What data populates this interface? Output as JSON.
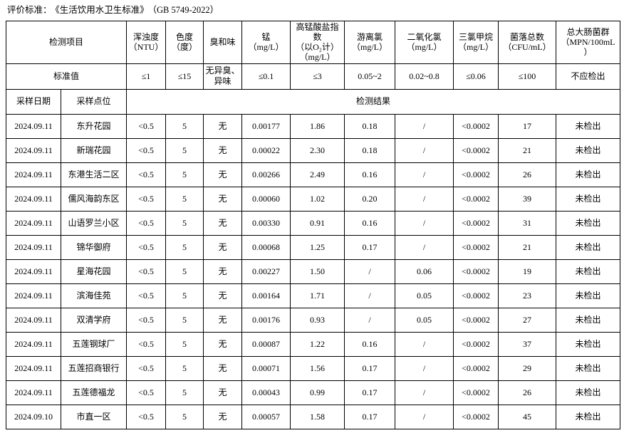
{
  "page": {
    "title_label": "评价标准：",
    "title_standard": "《生活饮用水卫生标准》",
    "title_code": "（GB 5749-2022）"
  },
  "table": {
    "corner_label": "检测项目",
    "standard_label": "标准值",
    "date_label": "采样日期",
    "location_label": "采样点位",
    "result_label": "检测结果",
    "columns": [
      {
        "id": "turbidity",
        "lines": [
          "浑浊度",
          "（NTU）"
        ]
      },
      {
        "id": "color",
        "lines": [
          "色度",
          "（度）"
        ]
      },
      {
        "id": "odor-taste",
        "lines": [
          "臭和味"
        ]
      },
      {
        "id": "manganese",
        "lines": [
          "锰",
          "（mg/L）"
        ]
      },
      {
        "id": "permanganate",
        "lines": [
          "高锰酸盐指数",
          "（以O₂计）",
          "（mg/L）"
        ]
      },
      {
        "id": "free-chlorine",
        "lines": [
          "游离氯",
          "（mg/L）"
        ]
      },
      {
        "id": "chlorine-dioxide",
        "lines": [
          "二氧化氯",
          "（mg/L）"
        ]
      },
      {
        "id": "trichloromethane",
        "lines": [
          "三氯甲烷",
          "（mg/L）"
        ]
      },
      {
        "id": "bacteria-count",
        "lines": [
          "菌落总数",
          "（CFU/mL）"
        ]
      },
      {
        "id": "total-coliform",
        "lines": [
          "总大肠菌群",
          "（MPN/100mL",
          "）"
        ]
      }
    ],
    "standards": [
      "≤1",
      "≤15",
      "无异臭、异味",
      "≤0.1",
      "≤3",
      "0.05~2",
      "0.02~0.8",
      "≤0.06",
      "≤100",
      "不应检出"
    ],
    "rows": [
      {
        "date": "2024.09.11",
        "location": "东升花园",
        "values": [
          "<0.5",
          "5",
          "无",
          "0.00177",
          "1.86",
          "0.18",
          "/",
          "<0.0002",
          "17",
          "未检出"
        ]
      },
      {
        "date": "2024.09.11",
        "location": "新瑞花园",
        "values": [
          "<0.5",
          "5",
          "无",
          "0.00022",
          "2.30",
          "0.18",
          "/",
          "<0.0002",
          "21",
          "未检出"
        ]
      },
      {
        "date": "2024.09.11",
        "location": "东港生活二区",
        "values": [
          "<0.5",
          "5",
          "无",
          "0.00266",
          "2.49",
          "0.16",
          "/",
          "<0.0002",
          "26",
          "未检出"
        ]
      },
      {
        "date": "2024.09.11",
        "location": "儒风海韵东区",
        "values": [
          "<0.5",
          "5",
          "无",
          "0.00060",
          "1.02",
          "0.20",
          "/",
          "<0.0002",
          "39",
          "未检出"
        ]
      },
      {
        "date": "2024.09.11",
        "location": "山语罗兰小区",
        "values": [
          "<0.5",
          "5",
          "无",
          "0.00330",
          "0.91",
          "0.16",
          "/",
          "<0.0002",
          "31",
          "未检出"
        ]
      },
      {
        "date": "2024.09.11",
        "location": "锦华御府",
        "values": [
          "<0.5",
          "5",
          "无",
          "0.00068",
          "1.25",
          "0.17",
          "/",
          "<0.0002",
          "21",
          "未检出"
        ]
      },
      {
        "date": "2024.09.11",
        "location": "星海花园",
        "values": [
          "<0.5",
          "5",
          "无",
          "0.00227",
          "1.50",
          "/",
          "0.06",
          "<0.0002",
          "19",
          "未检出"
        ]
      },
      {
        "date": "2024.09.11",
        "location": "滨海佳苑",
        "values": [
          "<0.5",
          "5",
          "无",
          "0.00164",
          "1.71",
          "/",
          "0.05",
          "<0.0002",
          "23",
          "未检出"
        ]
      },
      {
        "date": "2024.09.11",
        "location": "双清学府",
        "values": [
          "<0.5",
          "5",
          "无",
          "0.00176",
          "0.93",
          "/",
          "0.05",
          "<0.0002",
          "27",
          "未检出"
        ]
      },
      {
        "date": "2024.09.11",
        "location": "五莲钢球厂",
        "values": [
          "<0.5",
          "5",
          "无",
          "0.00087",
          "1.22",
          "0.16",
          "/",
          "<0.0002",
          "37",
          "未检出"
        ]
      },
      {
        "date": "2024.09.11",
        "location": "五莲招商银行",
        "values": [
          "<0.5",
          "5",
          "无",
          "0.00071",
          "1.56",
          "0.17",
          "/",
          "<0.0002",
          "29",
          "未检出"
        ]
      },
      {
        "date": "2024.09.11",
        "location": "五莲德福龙",
        "values": [
          "<0.5",
          "5",
          "无",
          "0.00043",
          "0.99",
          "0.17",
          "/",
          "<0.0002",
          "26",
          "未检出"
        ]
      },
      {
        "date": "2024.09.10",
        "location": "市直一区",
        "values": [
          "<0.5",
          "5",
          "无",
          "0.00057",
          "1.58",
          "0.17",
          "/",
          "<0.0002",
          "45",
          "未检出"
        ]
      }
    ]
  }
}
